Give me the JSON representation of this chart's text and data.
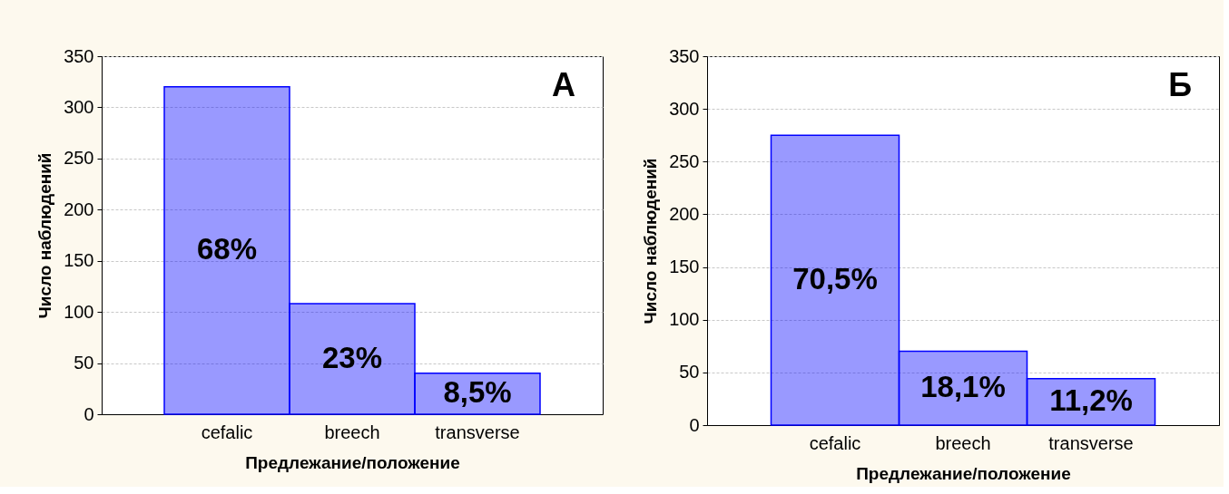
{
  "chart_data": [
    {
      "type": "bar",
      "categories": [
        "cefalic",
        "breech",
        "transverse"
      ],
      "values": [
        320,
        108,
        40
      ],
      "color": "#0000ff",
      "xlabel": "Предлежание/положение",
      "ylabel": "Число наблюдений",
      "ylim": [
        0,
        350
      ],
      "yticks": [
        0,
        50,
        100,
        150,
        200,
        250,
        300,
        350
      ],
      "grid": "y",
      "annotations": [
        "А",
        "68%",
        "23%",
        "8,5%"
      ]
    },
    {
      "type": "bar",
      "categories": [
        "cefalic",
        "breech",
        "transverse"
      ],
      "values": [
        275,
        70,
        44
      ],
      "color": "#0000ff",
      "xlabel": "Предлежание/положение",
      "ylabel": "Число наблюдений",
      "ylim": [
        0,
        350
      ],
      "yticks": [
        0,
        50,
        100,
        150,
        200,
        250,
        300,
        350
      ],
      "grid": "y",
      "annotations": [
        "Б",
        "70,5%",
        "18,1%",
        "11,2%"
      ]
    }
  ]
}
